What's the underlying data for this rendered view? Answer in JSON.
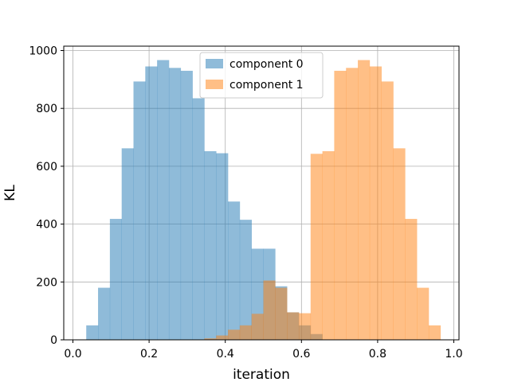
{
  "chart_data": {
    "type": "bar",
    "title": "",
    "xlabel": "iteration",
    "ylabel": "KL",
    "xlim": [
      0.0,
      1.0
    ],
    "ylim": [
      0,
      1000
    ],
    "xticks": [
      0.0,
      0.2,
      0.4,
      0.6,
      0.8,
      1.0
    ],
    "xtick_labels": [
      "0.0",
      "0.2",
      "0.4",
      "0.6",
      "0.8",
      "1.0"
    ],
    "yticks": [
      0,
      200,
      400,
      600,
      800,
      1000
    ],
    "ytick_labels": [
      "0",
      "200",
      "400",
      "600",
      "800",
      "1000"
    ],
    "grid": true,
    "legend_position": "top-center",
    "series": [
      {
        "name": "component 0",
        "color": "#1f77b4",
        "alpha": 0.5,
        "bin_edges": [
          0.035,
          0.066,
          0.097,
          0.128,
          0.159,
          0.19,
          0.221,
          0.252,
          0.283,
          0.314,
          0.345,
          0.376,
          0.407,
          0.438,
          0.469,
          0.5,
          0.531,
          0.562,
          0.593,
          0.624,
          0.655
        ],
        "counts": [
          50,
          180,
          418,
          662,
          893,
          945,
          967,
          940,
          930,
          835,
          652,
          645,
          478,
          415,
          315,
          315,
          185,
          95,
          50,
          20
        ]
      },
      {
        "name": "component 1",
        "color": "#ff7f0e",
        "alpha": 0.5,
        "bin_edges": [
          0.345,
          0.376,
          0.407,
          0.438,
          0.469,
          0.5,
          0.531,
          0.562,
          0.593,
          0.624,
          0.655,
          0.686,
          0.717,
          0.748,
          0.779,
          0.81,
          0.841,
          0.872,
          0.903,
          0.934,
          0.965
        ],
        "counts": [
          5,
          15,
          35,
          50,
          90,
          205,
          180,
          95,
          92,
          643,
          652,
          930,
          940,
          967,
          945,
          893,
          662,
          418,
          180,
          50
        ]
      }
    ]
  }
}
